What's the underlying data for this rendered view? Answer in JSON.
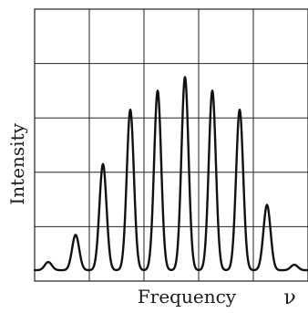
{
  "chart_data": {
    "type": "line",
    "title": "",
    "xlabel": "Frequency",
    "xlabel_symbol": "ν",
    "ylabel": "Intensity",
    "grid": true,
    "xlim": [
      0,
      10
    ],
    "ylim": [
      0,
      1
    ],
    "x_ticks": [
      2,
      4,
      6,
      8
    ],
    "y_ticks": [
      0.2,
      0.4,
      0.6,
      0.8
    ],
    "x_tick_labels_shown": false,
    "y_tick_labels_shown": false,
    "series": [
      {
        "peaks": [
          {
            "x": 0.5,
            "y": 0.07
          },
          {
            "x": 1.5,
            "y": 0.17
          },
          {
            "x": 2.5,
            "y": 0.43
          },
          {
            "x": 3.5,
            "y": 0.63
          },
          {
            "x": 4.5,
            "y": 0.7
          },
          {
            "x": 5.5,
            "y": 0.75
          },
          {
            "x": 6.5,
            "y": 0.7
          },
          {
            "x": 7.5,
            "y": 0.63
          },
          {
            "x": 8.5,
            "y": 0.28
          },
          {
            "x": 9.5,
            "y": 0.06
          }
        ],
        "baseline": 0.04,
        "color": "#111111"
      }
    ]
  }
}
